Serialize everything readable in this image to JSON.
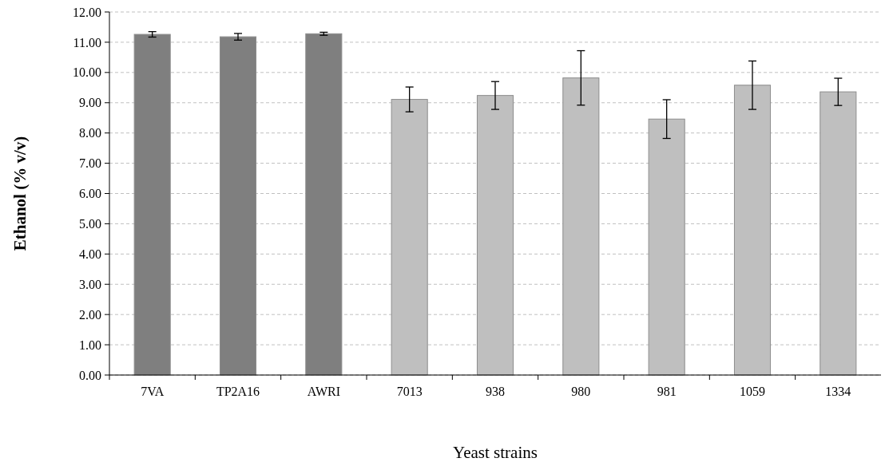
{
  "chart_data": {
    "type": "bar",
    "xlabel": "Yeast strains",
    "ylabel": "Ethanol (% v/v)",
    "categories": [
      "7VA",
      "TP2A16",
      "AWRI",
      "7013",
      "938",
      "980",
      "981",
      "1059",
      "1334"
    ],
    "values": [
      11.26,
      11.18,
      11.28,
      9.11,
      9.24,
      9.82,
      8.46,
      9.58,
      9.36
    ],
    "errors": [
      0.09,
      0.11,
      0.05,
      0.41,
      0.46,
      0.9,
      0.64,
      0.8,
      0.45
    ],
    "colors": [
      "#7f7f7f",
      "#7f7f7f",
      "#7f7f7f",
      "#bfbfbf",
      "#bfbfbf",
      "#bfbfbf",
      "#bfbfbf",
      "#bfbfbf",
      "#bfbfbf"
    ],
    "ylim": [
      0,
      12
    ],
    "yticks": [
      {
        "value": 0,
        "label": "0.00"
      },
      {
        "value": 1,
        "label": "1.00"
      },
      {
        "value": 2,
        "label": "2.00"
      },
      {
        "value": 3,
        "label": "3.00"
      },
      {
        "value": 4,
        "label": "4.00"
      },
      {
        "value": 5,
        "label": "5.00"
      },
      {
        "value": 6,
        "label": "6.00"
      },
      {
        "value": 7,
        "label": "7.00"
      },
      {
        "value": 8,
        "label": "8.00"
      },
      {
        "value": 9,
        "label": "9.00"
      },
      {
        "value": 10,
        "label": "10.00"
      },
      {
        "value": 11,
        "label": "11.00"
      },
      {
        "value": 12,
        "label": "12.00"
      }
    ],
    "grid": "y"
  }
}
